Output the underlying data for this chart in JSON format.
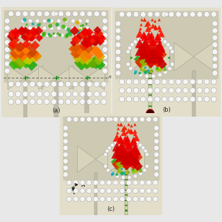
{
  "bg_color": "#d8d4bc",
  "substrate_color": "#cdc9b2",
  "inner_color": "#d0ccb5",
  "hole_color": "#f5f5f5",
  "hole_edge_color": "#aaaaaa",
  "ant_color": "#d8d4bc",
  "ant_edge_color": "#aaa899",
  "feed_green_color": "#8aaa66",
  "feed_tan_color": "#b8b49a",
  "field_red": [
    "#cc0000",
    "#dd0000",
    "#ee0000",
    "#ff1100",
    "#ee2200",
    "#dd3300"
  ],
  "field_orange": [
    "#cc4400",
    "#dd5500",
    "#ee6600",
    "#ff7700",
    "#ee8800"
  ],
  "field_yellow": [
    "#ddaa00",
    "#ccbb00",
    "#bbcc00",
    "#aabb00"
  ],
  "field_green": [
    "#88bb00",
    "#66aa00",
    "#44aa00",
    "#33bb00",
    "#22aa11"
  ],
  "field_cyan": [
    "#11aa44",
    "#00aa77",
    "#00aaaa"
  ],
  "panel_a_label": "(a)",
  "panel_b_label": "(b)",
  "panel_c_label": "(c)"
}
